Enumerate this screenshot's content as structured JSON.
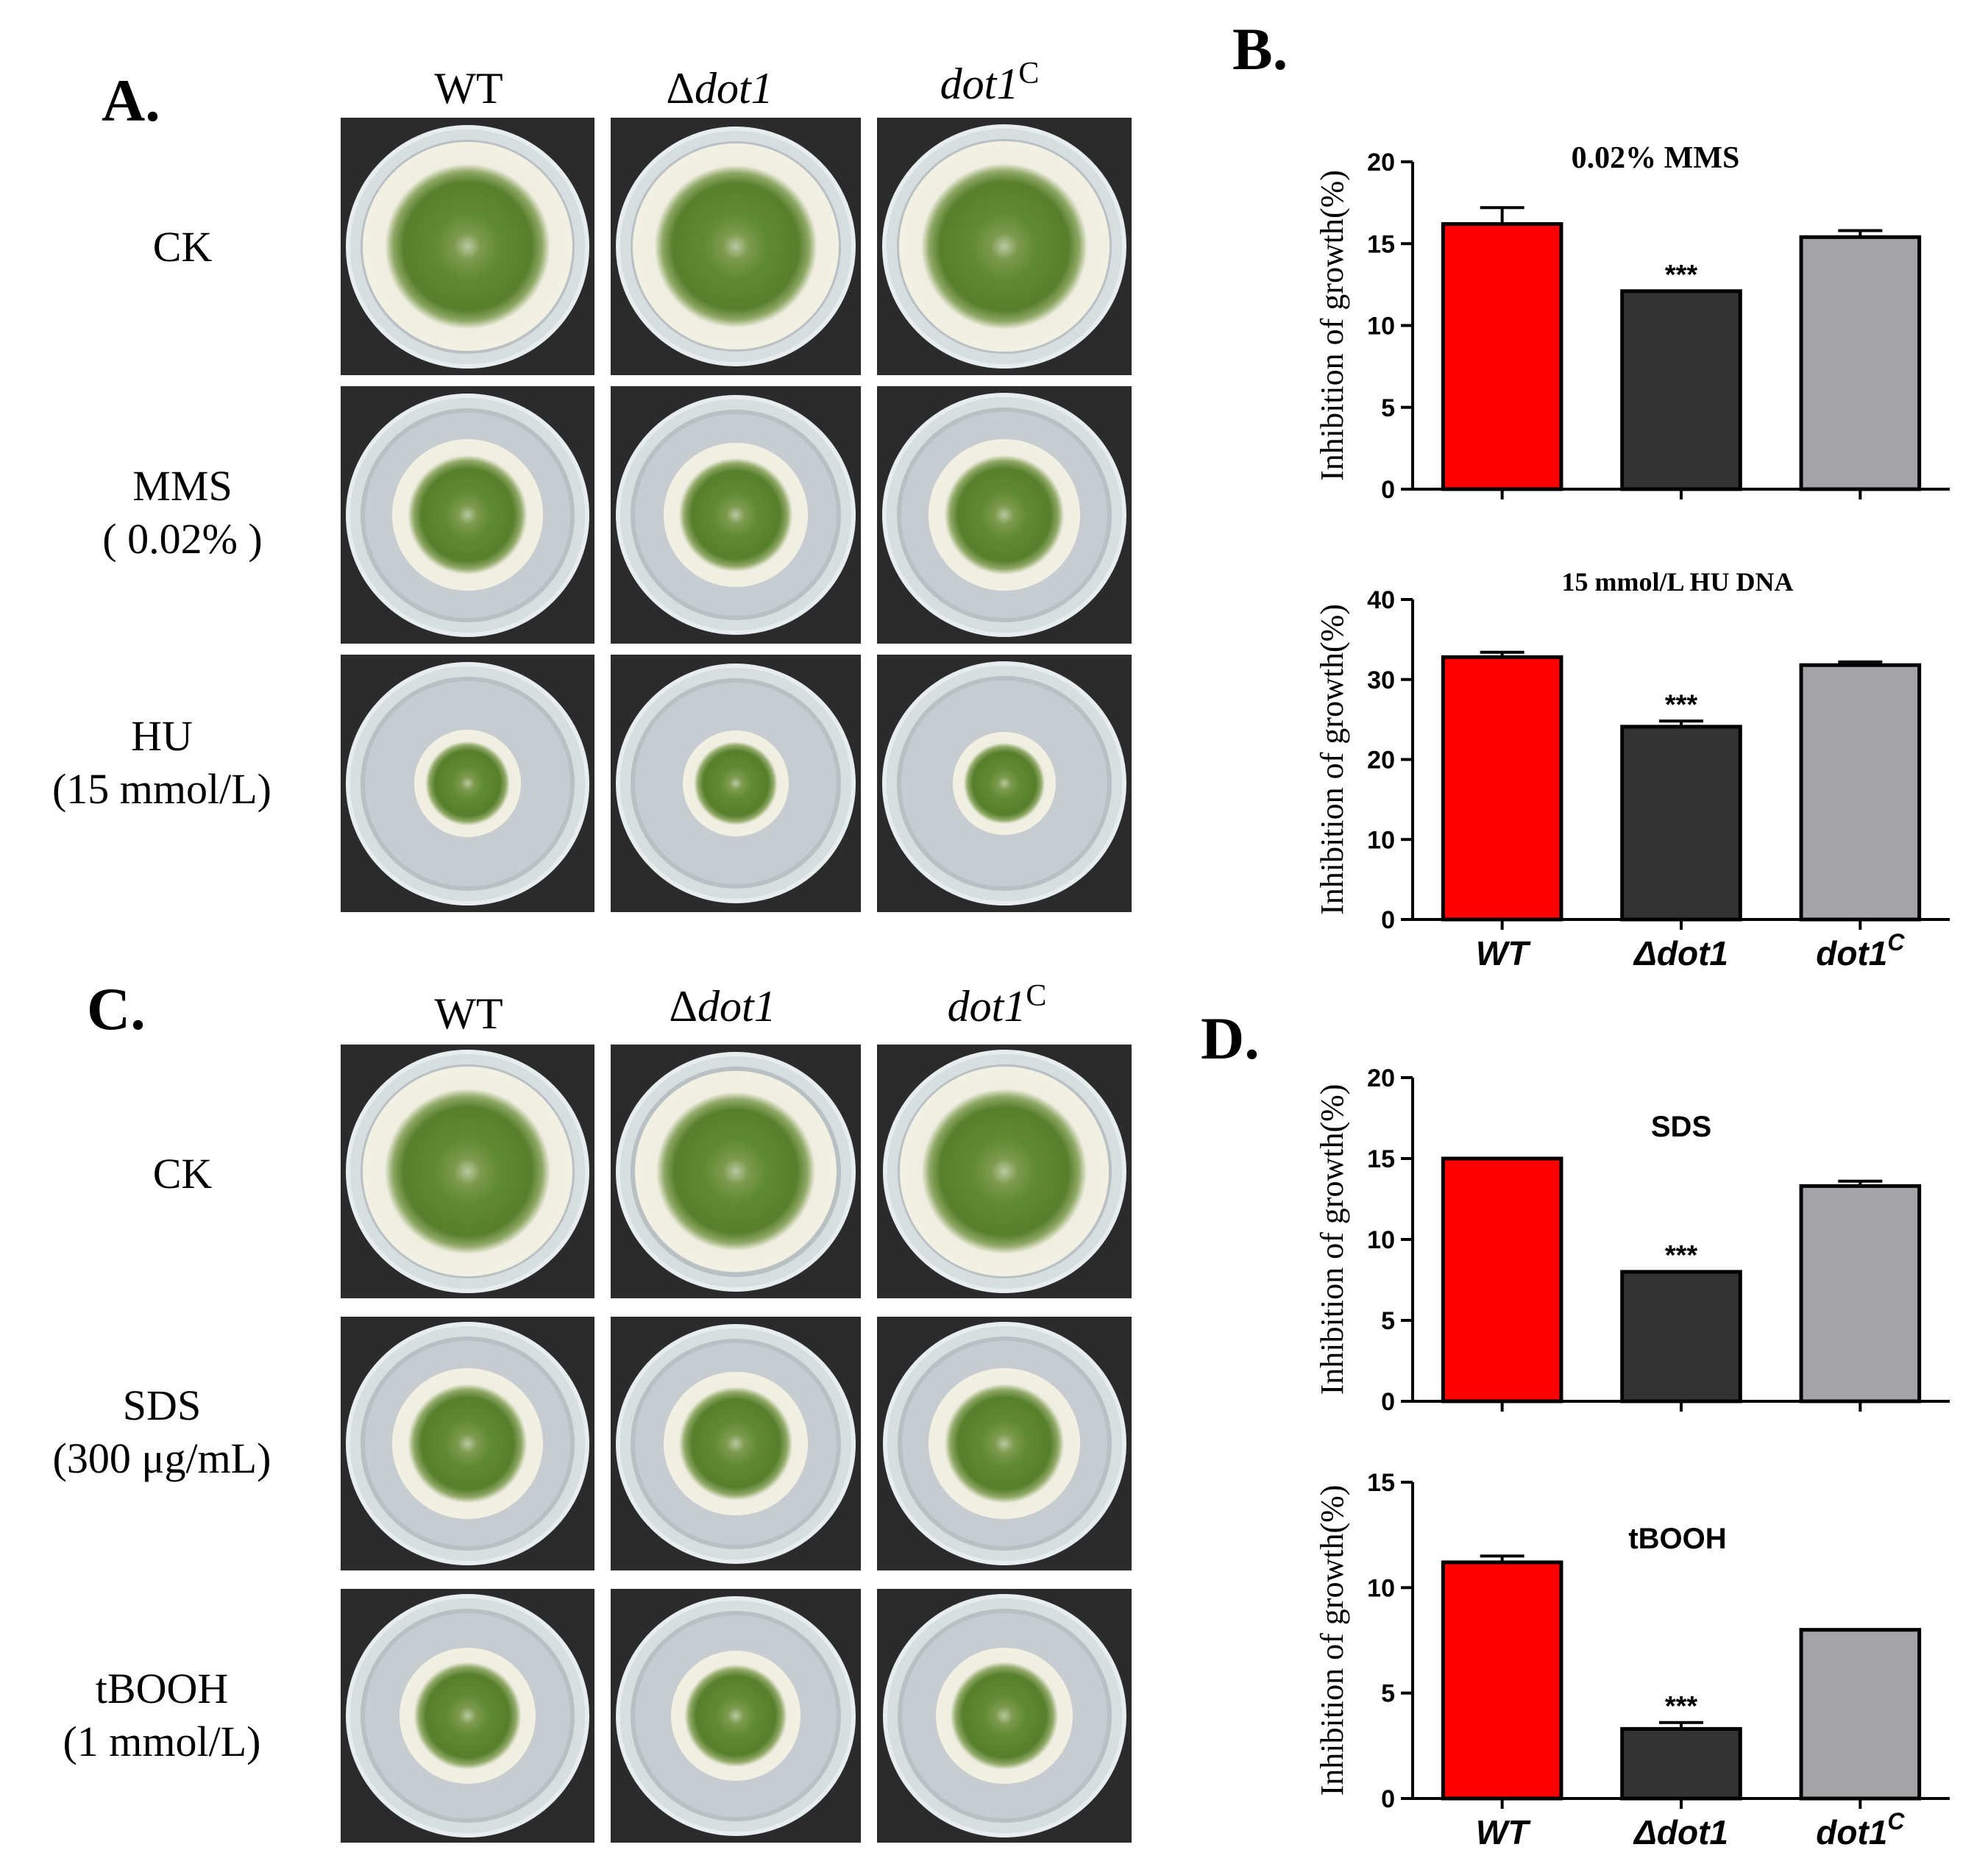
{
  "panels": {
    "A": {
      "letter": "A.",
      "columns": [
        {
          "prefix": "",
          "italic": "",
          "plain": "WT",
          "sup": ""
        },
        {
          "prefix": "Δ",
          "italic": "dot1",
          "plain": "",
          "sup": ""
        },
        {
          "prefix": "",
          "italic": "dot1",
          "plain": "",
          "sup": "C"
        }
      ],
      "rows": [
        {
          "lines": [
            "CK"
          ]
        },
        {
          "lines": [
            "MMS",
            "( 0.02% )"
          ]
        },
        {
          "lines": [
            "HU",
            "(15 mmol/L)"
          ]
        }
      ]
    },
    "C": {
      "letter": "C.",
      "columns": [
        {
          "prefix": "",
          "italic": "",
          "plain": "WT",
          "sup": ""
        },
        {
          "prefix": "Δ",
          "italic": "dot1",
          "plain": "",
          "sup": ""
        },
        {
          "prefix": "",
          "italic": "dot1",
          "plain": "",
          "sup": "C"
        }
      ],
      "rows": [
        {
          "lines": [
            "CK"
          ]
        },
        {
          "lines": [
            "SDS",
            "(300 μg/mL)"
          ]
        },
        {
          "lines": [
            "tBOOH",
            "(1 mmol/L)"
          ]
        }
      ]
    },
    "B": {
      "letter": "B."
    },
    "D": {
      "letter": "D."
    }
  },
  "plates": {
    "A": [
      [
        0.86,
        0.86,
        0.86
      ],
      [
        0.62,
        0.6,
        0.62
      ],
      [
        0.44,
        0.44,
        0.42
      ]
    ],
    "C": [
      [
        0.86,
        0.84,
        0.86
      ],
      [
        0.62,
        0.6,
        0.62
      ],
      [
        0.56,
        0.54,
        0.56
      ]
    ]
  },
  "colors": {
    "WT": "#ff0000",
    "dot1": "#333333",
    "dot1C": "#a3a3a8",
    "colony_green": "#5f8a32",
    "colony_rim": "#efeee0"
  },
  "chart_data": [
    {
      "type": "bar",
      "panel": "B",
      "title": "0.02% MMS",
      "ylabel": "Inhibition of growth(%)",
      "ylim": [
        0,
        20
      ],
      "yticks": [
        "0",
        "5",
        "10",
        "15",
        "20"
      ],
      "categories": [
        "WT",
        "Δdot1",
        "dot1C"
      ],
      "category_labels": [
        {
          "text": "WT",
          "sup": ""
        },
        {
          "text": "Δdot1",
          "sup": ""
        },
        {
          "text": "dot1",
          "sup": "C"
        }
      ],
      "show_category_labels": false,
      "values": [
        16.2,
        12.1,
        15.4
      ],
      "errors": [
        1.0,
        0.0,
        0.4
      ],
      "annotations": [
        "",
        "***",
        ""
      ]
    },
    {
      "type": "bar",
      "panel": "B",
      "title": "15 mmol/L HU DNA",
      "ylabel": "Inhibition of growth(%)",
      "ylim": [
        0,
        40
      ],
      "yticks": [
        "0",
        "10",
        "20",
        "30",
        "40"
      ],
      "categories": [
        "WT",
        "Δdot1",
        "dot1C"
      ],
      "category_labels": [
        {
          "text": "WT",
          "sup": ""
        },
        {
          "text": "Δdot1",
          "sup": ""
        },
        {
          "text": "dot1",
          "sup": "C"
        }
      ],
      "show_category_labels": true,
      "values": [
        32.8,
        24.1,
        31.8
      ],
      "errors": [
        0.6,
        0.7,
        0.4
      ],
      "annotations": [
        "",
        "***",
        ""
      ]
    },
    {
      "type": "bar",
      "panel": "D",
      "title": "SDS",
      "ylabel": "Inhibition of growth(%)",
      "ylim": [
        0,
        20
      ],
      "yticks": [
        "0",
        "5",
        "10",
        "15",
        "20"
      ],
      "categories": [
        "WT",
        "Δdot1",
        "dot1C"
      ],
      "category_labels": [
        {
          "text": "WT",
          "sup": ""
        },
        {
          "text": "Δdot1",
          "sup": ""
        },
        {
          "text": "dot1",
          "sup": "C"
        }
      ],
      "show_category_labels": false,
      "values": [
        15.0,
        8.0,
        13.3
      ],
      "errors": [
        0.0,
        0.0,
        0.3
      ],
      "annotations": [
        "",
        "***",
        ""
      ]
    },
    {
      "type": "bar",
      "panel": "D",
      "title": "tBOOH",
      "ylabel": "Inhibition of growth(%)",
      "ylim": [
        0,
        15
      ],
      "yticks": [
        "0",
        "5",
        "10",
        "15"
      ],
      "categories": [
        "WT",
        "Δdot1",
        "dot1C"
      ],
      "category_labels": [
        {
          "text": "WT",
          "sup": ""
        },
        {
          "text": "Δdot1",
          "sup": ""
        },
        {
          "text": "dot1",
          "sup": "C"
        }
      ],
      "show_category_labels": true,
      "values": [
        11.2,
        3.3,
        8.0
      ],
      "errors": [
        0.3,
        0.3,
        0.0
      ],
      "annotations": [
        "",
        "***",
        ""
      ]
    }
  ]
}
